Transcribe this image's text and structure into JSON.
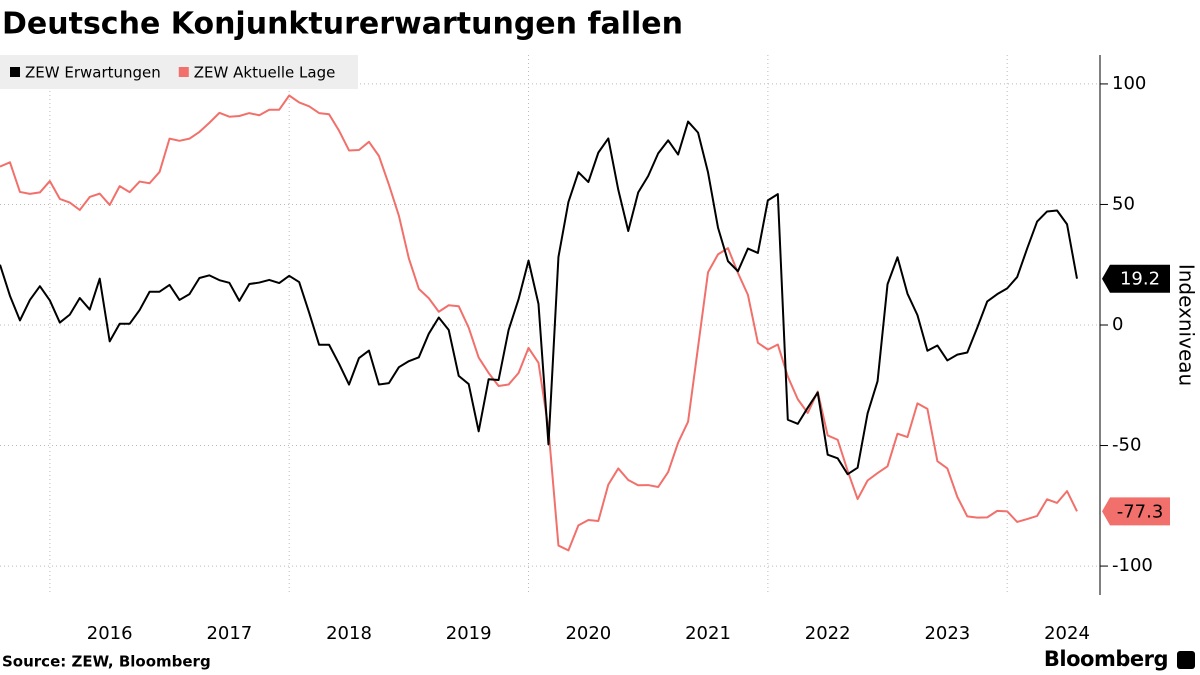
{
  "chart_data": {
    "type": "line",
    "title": "Deutsche Konjunkturerwartungen fallen",
    "y_axis_label": "Indexniveau",
    "source": "Source: ZEW, Bloomberg",
    "brand": "Bloomberg",
    "ylim": [
      -112,
      112
    ],
    "yticks": [
      100,
      50,
      0,
      -50,
      -100
    ],
    "grid": true,
    "legend": "top-left",
    "categories": [
      null,
      null,
      null,
      null,
      null,
      null,
      null,
      null,
      null,
      null,
      null,
      "2016",
      null,
      null,
      null,
      null,
      null,
      null,
      null,
      null,
      null,
      null,
      null,
      "2017",
      null,
      null,
      null,
      null,
      null,
      null,
      null,
      null,
      null,
      null,
      null,
      "2018",
      null,
      null,
      null,
      null,
      null,
      null,
      null,
      null,
      null,
      null,
      null,
      "2019",
      null,
      null,
      null,
      null,
      null,
      null,
      null,
      null,
      null,
      null,
      null,
      "2020",
      null,
      null,
      null,
      null,
      null,
      null,
      null,
      null,
      null,
      null,
      null,
      "2021",
      null,
      null,
      null,
      null,
      null,
      null,
      null,
      null,
      null,
      null,
      null,
      "2022",
      null,
      null,
      null,
      null,
      null,
      null,
      null,
      null,
      null,
      null,
      null,
      "2023",
      null,
      null,
      null,
      null,
      null,
      null,
      null,
      null,
      null,
      null,
      null,
      "2024",
      null
    ],
    "series": [
      {
        "name": "ZEW Erwartungen",
        "color": "#000000",
        "values": [
          25.0,
          12.1,
          1.9,
          10.4,
          16.1,
          10.2,
          1.0,
          4.3,
          11.2,
          6.4,
          19.2,
          -6.8,
          0.5,
          0.5,
          6.2,
          13.8,
          13.8,
          16.6,
          10.4,
          12.8,
          19.5,
          20.6,
          18.6,
          17.5,
          10.0,
          17.0,
          17.6,
          18.7,
          17.4,
          20.4,
          17.8,
          5.1,
          -8.2,
          -8.2,
          -16.1,
          -24.7,
          -13.7,
          -10.6,
          -24.7,
          -24.1,
          -17.5,
          -15.0,
          -13.4,
          -3.6,
          3.1,
          -2.1,
          -21.1,
          -24.5,
          -44.1,
          -22.5,
          -22.8,
          -2.1,
          10.7,
          26.7,
          8.7,
          -49.5,
          28.2,
          51.0,
          63.4,
          59.3,
          71.5,
          77.4,
          56.1,
          39.0,
          55.0,
          61.8,
          71.2,
          76.6,
          70.7,
          84.4,
          79.8,
          63.3,
          40.4,
          26.5,
          22.3,
          31.7,
          29.9,
          51.7,
          54.3,
          -39.3,
          -41.0,
          -34.3,
          -28.0,
          -53.8,
          -55.3,
          -61.9,
          -59.2,
          -36.7,
          -23.3,
          16.9,
          28.1,
          13.0,
          4.1,
          -10.7,
          -8.5,
          -14.7,
          -12.3,
          -11.4,
          -1.1,
          9.8,
          12.8,
          15.2,
          19.9,
          31.7,
          42.9,
          47.1,
          47.5,
          41.8,
          19.2
        ]
      },
      {
        "name": "ZEW Aktuelle Lage",
        "color": "#f2706b",
        "values": [
          65.7,
          67.5,
          55.2,
          54.4,
          55.0,
          59.7,
          52.3,
          50.8,
          47.7,
          53.1,
          54.5,
          49.8,
          57.6,
          55.1,
          59.5,
          58.8,
          63.5,
          77.3,
          76.4,
          77.3,
          80.1,
          83.9,
          88.0,
          86.4,
          86.7,
          87.9,
          87.0,
          89.3,
          89.3,
          95.2,
          92.3,
          90.7,
          87.9,
          87.4,
          80.6,
          72.4,
          72.6,
          76.0,
          70.1,
          58.2,
          45.3,
          27.6,
          15.0,
          11.1,
          5.5,
          8.2,
          7.8,
          -1.1,
          -13.5,
          -19.9,
          -25.3,
          -24.7,
          -19.9,
          -9.5,
          -15.7,
          -43.1,
          -91.5,
          -93.5,
          -83.1,
          -80.9,
          -81.3,
          -66.2,
          -59.5,
          -64.3,
          -66.5,
          -66.4,
          -67.2,
          -61.0,
          -48.8,
          -40.1,
          -9.1,
          21.9,
          29.3,
          31.9,
          21.6,
          12.5,
          -7.4,
          -10.2,
          -8.1,
          -21.4,
          -30.8,
          -36.5,
          -27.6,
          -45.8,
          -47.6,
          -60.5,
          -72.2,
          -64.5,
          -61.4,
          -58.6,
          -45.1,
          -46.5,
          -32.5,
          -34.8,
          -56.5,
          -59.5,
          -71.3,
          -79.4,
          -79.9,
          -79.8,
          -77.1,
          -77.3,
          -81.7,
          -80.5,
          -79.2,
          -72.3,
          -73.8,
          -68.9,
          -77.3
        ]
      }
    ]
  }
}
